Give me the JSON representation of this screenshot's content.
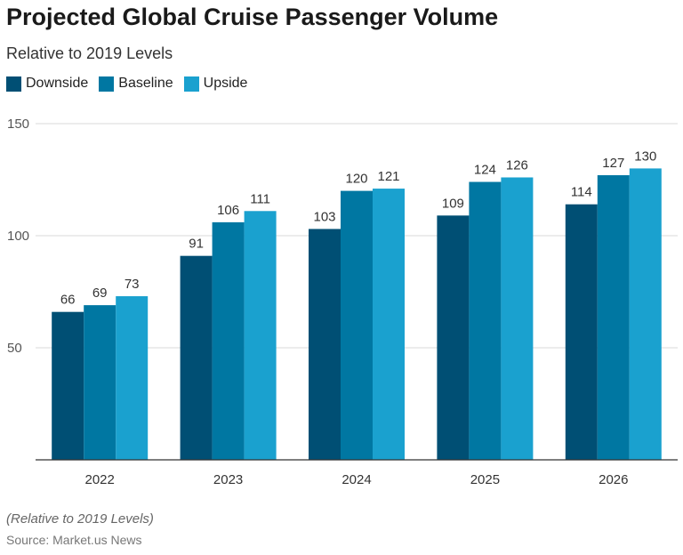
{
  "chart_data": {
    "type": "bar",
    "title": "Projected Global Cruise Passenger Volume",
    "subtitle": "Relative to 2019 Levels",
    "categories": [
      "2022",
      "2023",
      "2024",
      "2025",
      "2026"
    ],
    "series": [
      {
        "name": "Downside",
        "color": "#004f74",
        "values": [
          66,
          91,
          103,
          109,
          114
        ]
      },
      {
        "name": "Baseline",
        "color": "#0077a2",
        "values": [
          69,
          106,
          120,
          124,
          127
        ]
      },
      {
        "name": "Upside",
        "color": "#1aa1cf",
        "values": [
          73,
          111,
          121,
          126,
          130
        ]
      }
    ],
    "ylim": [
      0,
      150
    ],
    "yticks": [
      50,
      100,
      150
    ],
    "grid": true,
    "legend": "top-left",
    "note": "(Relative to 2019 Levels)",
    "source": "Source: Market.us News"
  }
}
